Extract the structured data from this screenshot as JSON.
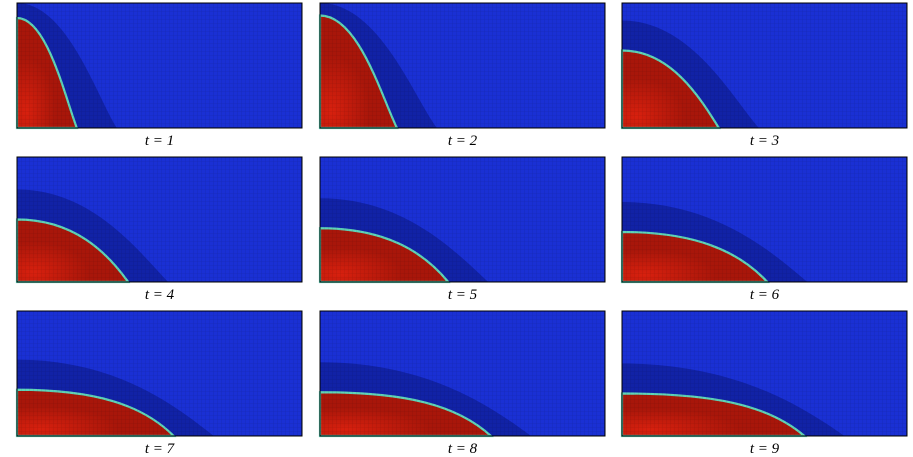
{
  "panels": [
    {
      "caption": "t = 1"
    },
    {
      "caption": "t = 2"
    },
    {
      "caption": "t = 3"
    },
    {
      "caption": "t = 4"
    },
    {
      "caption": "t = 5"
    },
    {
      "caption": "t = 6"
    },
    {
      "caption": "t = 7"
    },
    {
      "caption": "t = 8"
    },
    {
      "caption": "t = 9"
    }
  ]
}
